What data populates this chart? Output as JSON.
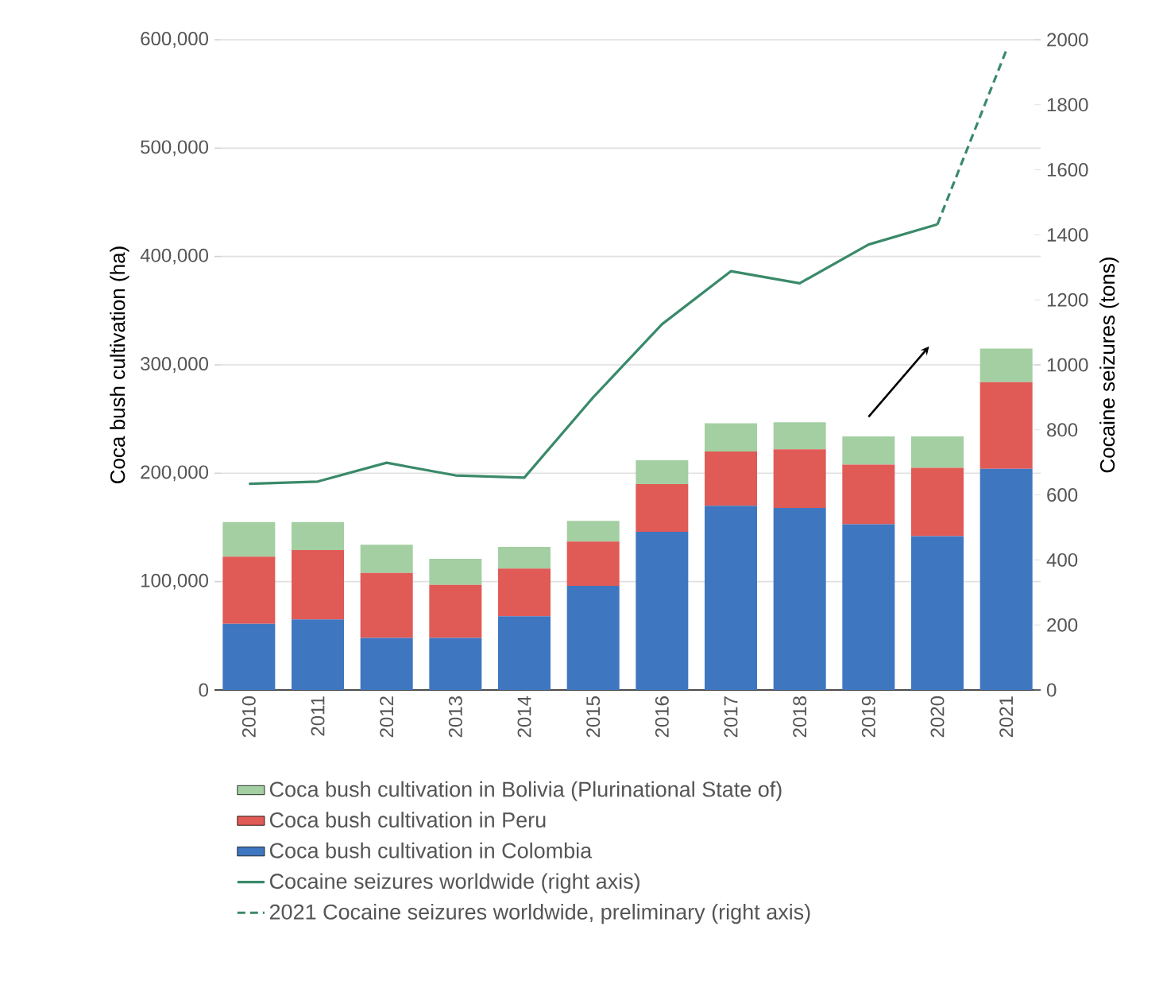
{
  "chart_data": {
    "type": "bar",
    "stacked": true,
    "ylabel": "Coca bush cultivation (ha)",
    "y2label": "Cocaine seizures (tons)",
    "categories": [
      "2010",
      "2011",
      "2012",
      "2013",
      "2014",
      "2015",
      "2016",
      "2017",
      "2018",
      "2019",
      "2020",
      "2021"
    ],
    "series": [
      {
        "name": "Coca bush cultivation in Colombia",
        "color": "#3f76c0",
        "values": [
          61000,
          65000,
          48000,
          48000,
          68000,
          96000,
          146000,
          170000,
          168000,
          153000,
          142000,
          204000
        ]
      },
      {
        "name": "Coca bush cultivation in Peru",
        "color": "#e05a56",
        "values": [
          62000,
          64000,
          60000,
          49000,
          44000,
          41000,
          44000,
          50000,
          54000,
          55000,
          63000,
          80000
        ]
      },
      {
        "name": "Coca bush cultivation in Bolivia (Plurinational State of)",
        "color": "#a3cfa2",
        "values": [
          32000,
          26000,
          26000,
          24000,
          20000,
          19000,
          22000,
          26000,
          25000,
          26000,
          29000,
          31000
        ]
      },
      {
        "name": "Cocaine seizures worldwide (right axis)",
        "type": "line",
        "axis": "y2",
        "line_style": "solid",
        "color": "#3a8a6a",
        "values": [
          634,
          641,
          699,
          660,
          653,
          900,
          1125,
          1288,
          1251,
          1370,
          1432,
          null
        ]
      },
      {
        "name": "2021 Cocaine seizures worldwide, preliminary (right axis)",
        "type": "line",
        "axis": "y2",
        "line_style": "dashed",
        "color": "#3a8a6a",
        "values": [
          null,
          null,
          null,
          null,
          null,
          null,
          null,
          null,
          null,
          null,
          1432,
          1967
        ]
      }
    ],
    "ylim": [
      0,
      600000
    ],
    "yticks": [
      0,
      {
        "value": 100000,
        "label": "100,000"
      },
      {
        "value": 200000,
        "label": "200,000"
      },
      {
        "value": 300000,
        "label": "300,000"
      },
      {
        "value": 400000,
        "label": "400,000"
      },
      {
        "value": 500000,
        "label": "500,000"
      },
      {
        "value": 600000,
        "label": "600,000"
      }
    ],
    "y2lim": [
      0,
      2000
    ],
    "y2ticks": [
      0,
      200,
      400,
      600,
      800,
      1000,
      1200,
      1400,
      1600,
      1800,
      2000
    ],
    "grid": "y",
    "legend": "bottom"
  }
}
